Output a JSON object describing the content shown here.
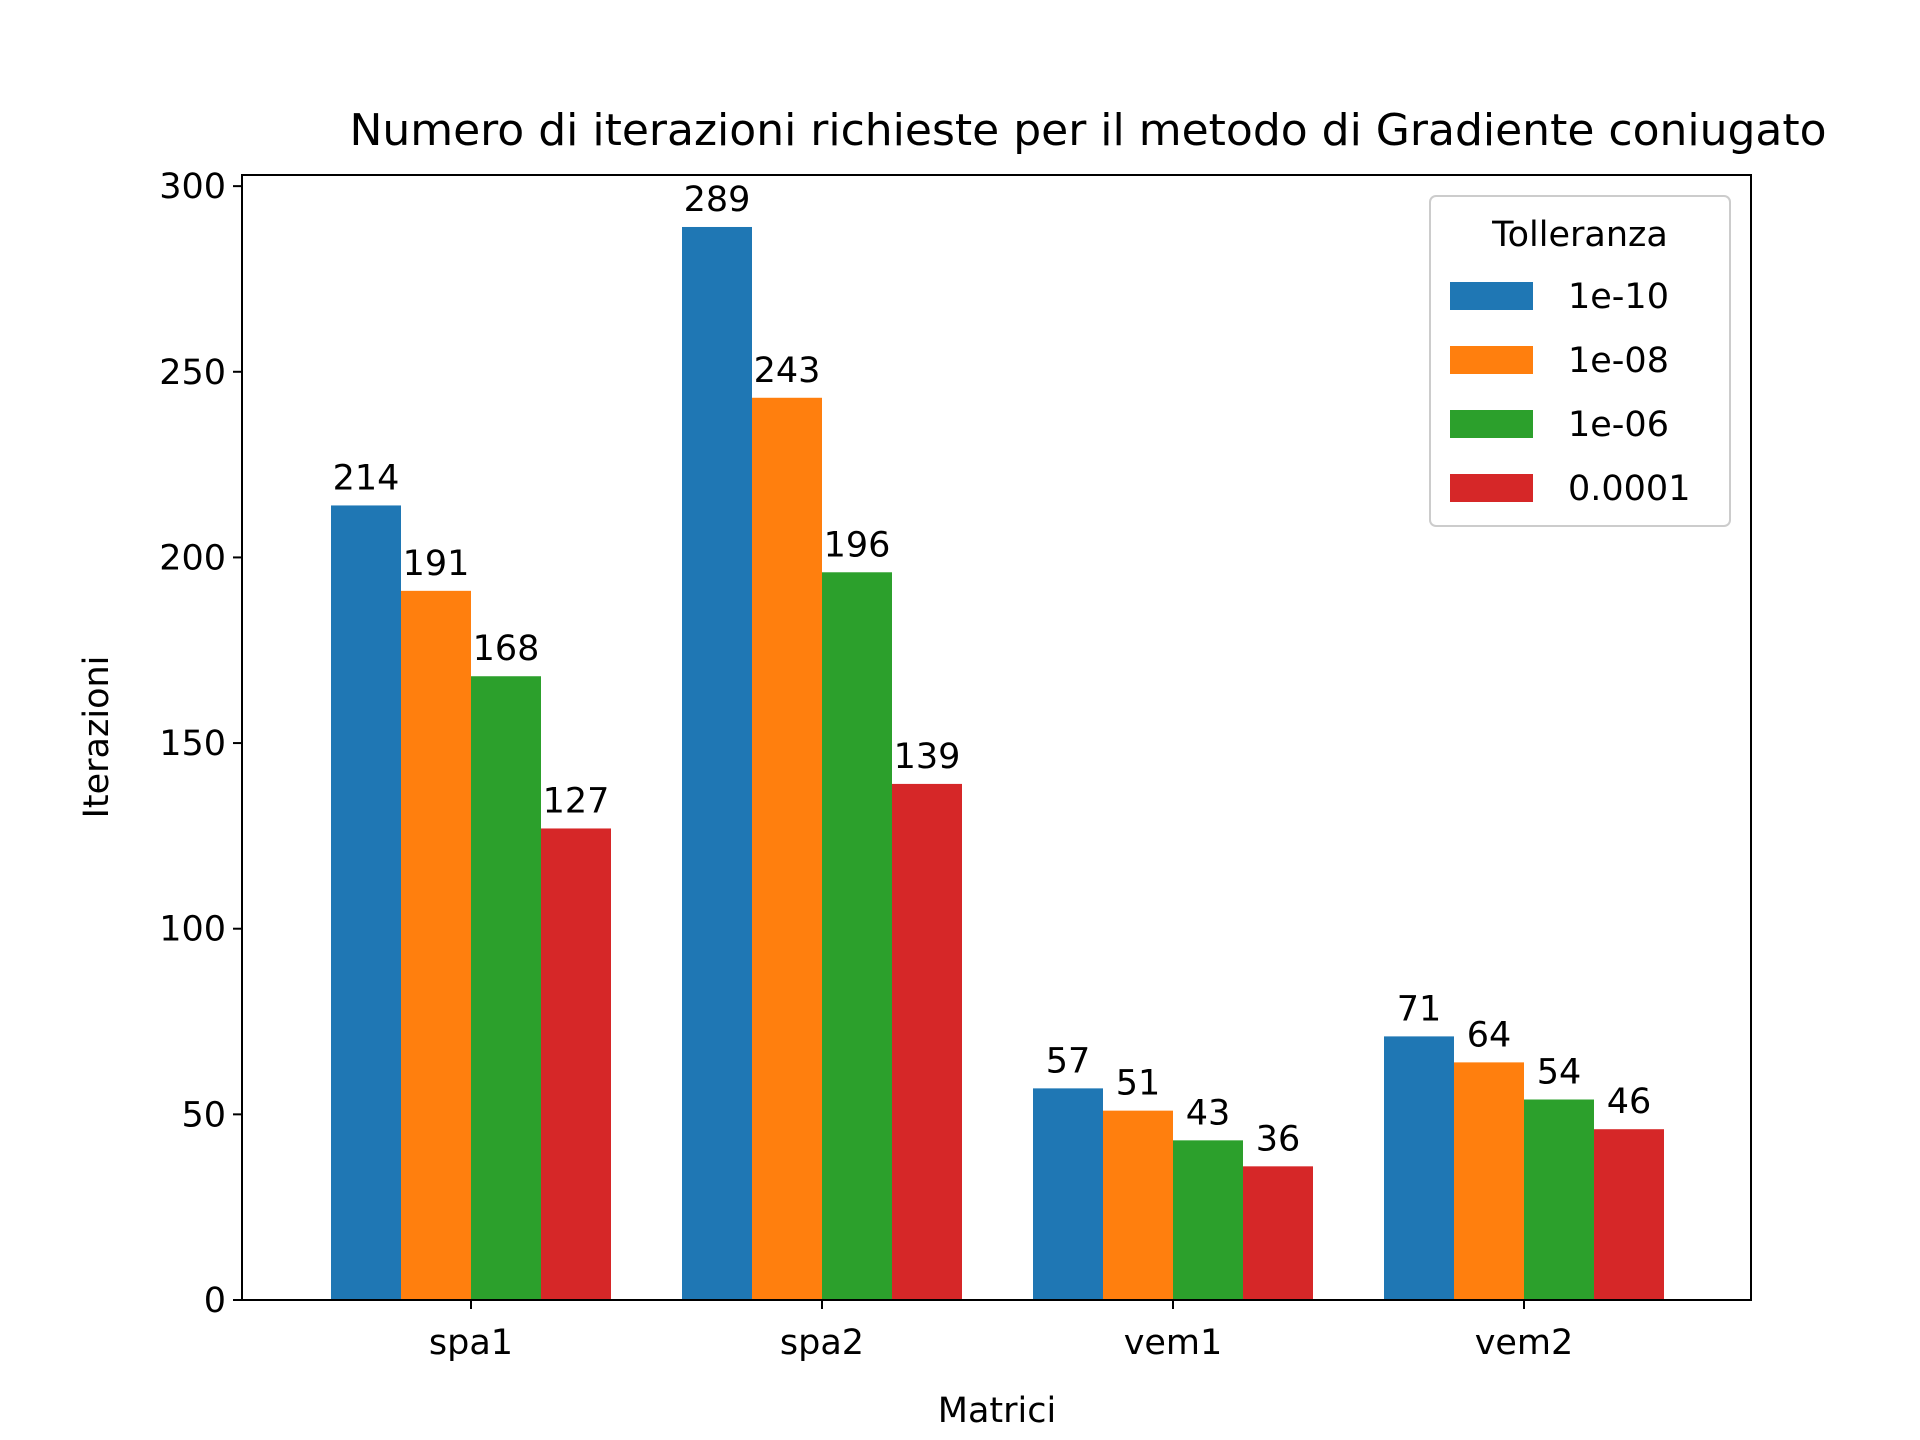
{
  "chart_data": {
    "type": "bar",
    "title": "Numero di iterazioni richieste per il metodo di Gradiente coniugato",
    "xlabel": "Matrici",
    "ylabel": "Iterazioni",
    "categories": [
      "spa1",
      "spa2",
      "vem1",
      "vem2"
    ],
    "ylim": [
      0,
      303
    ],
    "yticks": [
      0,
      50,
      100,
      150,
      200,
      250,
      300
    ],
    "ytick_labels": [
      "0",
      "50",
      "100",
      "150",
      "200",
      "250",
      "300"
    ],
    "legend": {
      "title": "Tolleranza",
      "placement": "top-right"
    },
    "grid": false,
    "series": [
      {
        "name": "1e-10",
        "color": "#1f77b4",
        "values": [
          214,
          289,
          57,
          71
        ],
        "labels": [
          "214",
          "289",
          "57",
          "71"
        ]
      },
      {
        "name": "1e-08",
        "color": "#ff7f0e",
        "values": [
          191,
          243,
          51,
          64
        ],
        "labels": [
          "191",
          "243",
          "51",
          "64"
        ]
      },
      {
        "name": "1e-06",
        "color": "#2ca02c",
        "values": [
          168,
          196,
          43,
          54
        ],
        "labels": [
          "168",
          "196",
          "43",
          "54"
        ]
      },
      {
        "name": "0.0001",
        "color": "#d62728",
        "values": [
          127,
          139,
          36,
          46
        ],
        "labels": [
          "127",
          "139",
          "36",
          "46"
        ]
      }
    ]
  }
}
